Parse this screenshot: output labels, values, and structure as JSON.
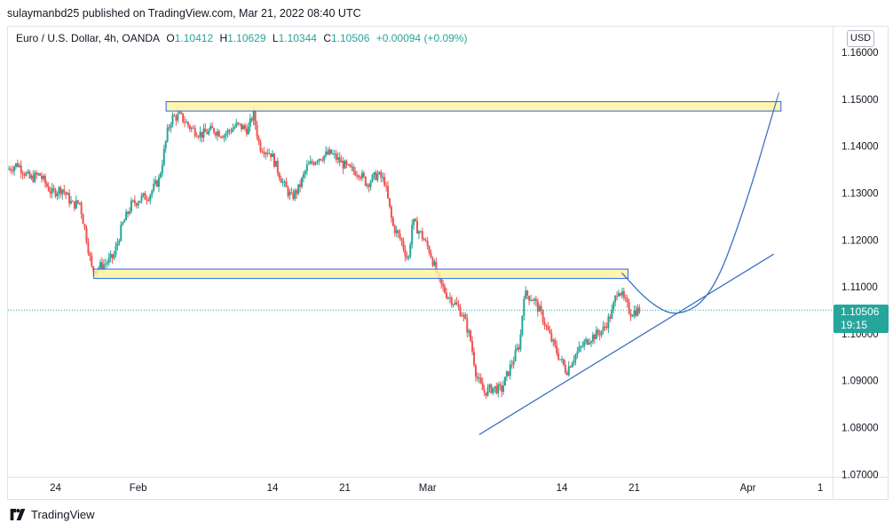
{
  "header": {
    "published_line": "sulaymanbd25 published on TradingView.com, Mar 21, 2022 08:40 UTC"
  },
  "legend": {
    "symbol": "Euro / U.S. Dollar, 4h, OANDA",
    "o_label": "O",
    "o_value": "1.10412",
    "h_label": "H",
    "h_value": "1.10629",
    "l_label": "L",
    "l_value": "1.10344",
    "c_label": "C",
    "c_value": "1.10506",
    "change": "+0.00094 (+0.09%)"
  },
  "currency_button": "USD",
  "last_price": {
    "price": "1.10506",
    "countdown": "19:15"
  },
  "footer": {
    "brand": "TradingView"
  },
  "colors": {
    "up": "#26a69a",
    "down": "#ef5350",
    "zone_fill": "#fff59d",
    "zone_border": "#2962ff",
    "trendline": "#3d6fc4",
    "projection": "#3d6fc4",
    "last_price_line": "#26a69a"
  },
  "chart_data": {
    "type": "candlestick",
    "symbol": "EURUSD",
    "interval": "4h",
    "y_ticks": [
      "1.16000",
      "1.15000",
      "1.14000",
      "1.13000",
      "1.12000",
      "1.11000",
      "1.10000",
      "1.09000",
      "1.08000",
      "1.07000"
    ],
    "ylim": [
      1.0695,
      1.1655
    ],
    "x_ticks": [
      {
        "label": "24",
        "day": -8
      },
      {
        "label": "Feb",
        "day": 0
      },
      {
        "label": "14",
        "day": 13
      },
      {
        "label": "21",
        "day": 20
      },
      {
        "label": "Mar",
        "day": 28
      },
      {
        "label": "14",
        "day": 41
      },
      {
        "label": "21",
        "day": 48
      },
      {
        "label": "Apr",
        "day": 59
      },
      {
        "label": "1",
        "day": 66
      }
    ],
    "xlim_days": [
      -12.6,
      67.2
    ],
    "price_path": [
      [
        -12.5,
        1.135
      ],
      [
        -11.5,
        1.1362
      ],
      [
        -10.3,
        1.133
      ],
      [
        -9.4,
        1.134
      ],
      [
        -8.2,
        1.13
      ],
      [
        -7.2,
        1.131
      ],
      [
        -6.2,
        1.1275
      ],
      [
        -5.5,
        1.128
      ],
      [
        -4.8,
        1.12
      ],
      [
        -4.3,
        1.1135
      ],
      [
        -3.8,
        1.114
      ],
      [
        -3.0,
        1.115
      ],
      [
        -2.2,
        1.1165
      ],
      [
        -1.4,
        1.123
      ],
      [
        -0.5,
        1.1275
      ],
      [
        0.5,
        1.129
      ],
      [
        1.2,
        1.1295
      ],
      [
        2.2,
        1.133
      ],
      [
        3.0,
        1.143
      ],
      [
        3.4,
        1.146
      ],
      [
        4.2,
        1.1465
      ],
      [
        5.2,
        1.144
      ],
      [
        6.3,
        1.1425
      ],
      [
        7.4,
        1.1435
      ],
      [
        8.5,
        1.1425
      ],
      [
        9.7,
        1.1445
      ],
      [
        10.8,
        1.1435
      ],
      [
        11.3,
        1.147
      ],
      [
        11.9,
        1.14
      ],
      [
        13.0,
        1.1385
      ],
      [
        14.2,
        1.132
      ],
      [
        15.0,
        1.129
      ],
      [
        15.7,
        1.131
      ],
      [
        16.5,
        1.1355
      ],
      [
        17.5,
        1.1375
      ],
      [
        18.8,
        1.1385
      ],
      [
        19.8,
        1.1365
      ],
      [
        20.6,
        1.135
      ],
      [
        21.5,
        1.1345
      ],
      [
        22.3,
        1.132
      ],
      [
        23.3,
        1.134
      ],
      [
        24.0,
        1.1325
      ],
      [
        24.8,
        1.123
      ],
      [
        25.6,
        1.12
      ],
      [
        26.3,
        1.1155
      ],
      [
        26.7,
        1.124
      ],
      [
        27.6,
        1.121
      ],
      [
        28.4,
        1.1175
      ],
      [
        29.3,
        1.111
      ],
      [
        30.0,
        1.1085
      ],
      [
        30.8,
        1.1065
      ],
      [
        31.6,
        1.104
      ],
      [
        32.3,
        1.099
      ],
      [
        32.9,
        1.091
      ],
      [
        33.6,
        1.0875
      ],
      [
        34.5,
        1.0885
      ],
      [
        35.3,
        1.088
      ],
      [
        36.1,
        1.0925
      ],
      [
        37.1,
        1.098
      ],
      [
        37.5,
        1.1085
      ],
      [
        38.4,
        1.1075
      ],
      [
        39.2,
        1.104
      ],
      [
        40.0,
        1.0995
      ],
      [
        40.8,
        1.0955
      ],
      [
        41.6,
        1.092
      ],
      [
        42.3,
        1.095
      ],
      [
        43.0,
        1.097
      ],
      [
        43.8,
        1.099
      ],
      [
        44.6,
        1.1
      ],
      [
        45.2,
        1.101
      ],
      [
        46.0,
        1.1045
      ],
      [
        46.6,
        1.11
      ],
      [
        47.1,
        1.1075
      ],
      [
        47.8,
        1.1045
      ],
      [
        48.6,
        1.1051
      ]
    ],
    "annotations": {
      "resistance_zone": {
        "day_start": 2.7,
        "day_end": 62.2,
        "price_low": 1.1475,
        "price_high": 1.1495
      },
      "support_zone": {
        "day_start": -4.3,
        "day_end": 47.4,
        "price_low": 1.1118,
        "price_high": 1.1138
      },
      "trendline": {
        "start": [
          33.0,
          1.0785
        ],
        "end": [
          61.5,
          1.117
        ]
      },
      "projection_curve": [
        [
          46.8,
          1.113
        ],
        [
          49.5,
          1.1065
        ],
        [
          52.2,
          1.1035
        ],
        [
          55.5,
          1.108
        ],
        [
          58.6,
          1.126
        ],
        [
          62.0,
          1.1515
        ]
      ],
      "last_price_line": 1.10506
    }
  }
}
